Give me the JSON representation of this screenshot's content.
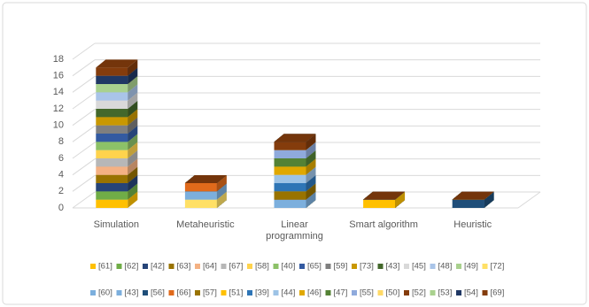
{
  "chart_data": {
    "type": "bar3d_stacked",
    "categories": [
      "Simulation",
      "Metaheuristic",
      "Linear programming",
      "Smart algorithm",
      "Heuristic"
    ],
    "ylim": [
      0,
      18
    ],
    "yticks": [
      0,
      2,
      4,
      6,
      8,
      10,
      12,
      14,
      16,
      18
    ],
    "grid": true,
    "series": [
      {
        "name": "[61]",
        "color": "#ffc000",
        "values": [
          1,
          0,
          0,
          0,
          0
        ]
      },
      {
        "name": "[62]",
        "color": "#70ad47",
        "values": [
          1,
          0,
          0,
          0,
          0
        ]
      },
      {
        "name": "[42]",
        "color": "#264478",
        "values": [
          1,
          0,
          0,
          0,
          0
        ]
      },
      {
        "name": "[63]",
        "color": "#997300",
        "values": [
          1,
          0,
          0,
          0,
          0
        ]
      },
      {
        "name": "[64]",
        "color": "#f4b183",
        "values": [
          1,
          0,
          0,
          0,
          0
        ]
      },
      {
        "name": "[67]",
        "color": "#b7b7b7",
        "values": [
          1,
          0,
          0,
          0,
          0
        ]
      },
      {
        "name": "[58]",
        "color": "#ffd34d",
        "values": [
          1,
          0,
          0,
          0,
          0
        ]
      },
      {
        "name": "[40]",
        "color": "#8cc168",
        "values": [
          1,
          0,
          0,
          0,
          0
        ]
      },
      {
        "name": "[65]",
        "color": "#335aa1",
        "values": [
          1,
          0,
          0,
          0,
          0
        ]
      },
      {
        "name": "[59]",
        "color": "#7f7f7f",
        "values": [
          1,
          0,
          0,
          0,
          0
        ]
      },
      {
        "name": "[73]",
        "color": "#c99800",
        "values": [
          1,
          0,
          0,
          0,
          0
        ]
      },
      {
        "name": "[43]",
        "color": "#43682b",
        "values": [
          1,
          0,
          0,
          0,
          0
        ]
      },
      {
        "name": "[45]",
        "color": "#d9d9d9",
        "values": [
          1,
          0,
          0,
          0,
          0
        ]
      },
      {
        "name": "[48]",
        "color": "#a9c4e8",
        "values": [
          1,
          0,
          0,
          0,
          0
        ]
      },
      {
        "name": "[49]",
        "color": "#a9d18e",
        "values": [
          1,
          0,
          0,
          0,
          0
        ]
      },
      {
        "name": "[72]",
        "color": "#ffe066",
        "values": [
          0,
          1,
          0,
          0,
          0
        ]
      },
      {
        "name": "[60]",
        "color": "#7cafdd",
        "values": [
          0,
          1,
          0,
          0,
          0
        ]
      },
      {
        "name": "[43]",
        "color": "#7cafdd",
        "values": [
          0,
          0,
          1,
          0,
          0
        ]
      },
      {
        "name": "[56]",
        "color": "#1f4e79",
        "values": [
          0,
          0,
          0,
          0,
          1
        ]
      },
      {
        "name": "[66]",
        "color": "#e06a1b",
        "values": [
          0,
          1,
          0,
          0,
          0
        ]
      },
      {
        "name": "[57]",
        "color": "#997300",
        "values": [
          0,
          0,
          1,
          0,
          0
        ]
      },
      {
        "name": "[51]",
        "color": "#ffc000",
        "values": [
          0,
          0,
          0,
          1,
          0
        ]
      },
      {
        "name": "[39]",
        "color": "#2e75b6",
        "values": [
          0,
          0,
          1,
          0,
          0
        ]
      },
      {
        "name": "[44]",
        "color": "#9dc3e6",
        "values": [
          0,
          0,
          1,
          0,
          0
        ]
      },
      {
        "name": "[46]",
        "color": "#e0a800",
        "values": [
          0,
          0,
          1,
          0,
          0
        ]
      },
      {
        "name": "[47]",
        "color": "#548235",
        "values": [
          0,
          0,
          1,
          0,
          0
        ]
      },
      {
        "name": "[55]",
        "color": "#8faadc",
        "values": [
          0,
          0,
          1,
          0,
          0
        ]
      },
      {
        "name": "[50]",
        "color": "#ffd966",
        "values": [
          0,
          0,
          0,
          0,
          0
        ]
      },
      {
        "name": "[52]",
        "color": "#843c0c",
        "values": [
          0,
          0,
          1,
          0,
          0
        ]
      },
      {
        "name": "[53]",
        "color": "#a9d18e",
        "values": [
          0,
          0,
          0,
          0,
          0
        ]
      },
      {
        "name": "[54]",
        "color": "#203864",
        "values": [
          1,
          0,
          0,
          0,
          0
        ]
      },
      {
        "name": "[69]",
        "color": "#843c0c",
        "values": [
          1,
          0,
          0,
          0,
          0
        ]
      }
    ]
  }
}
